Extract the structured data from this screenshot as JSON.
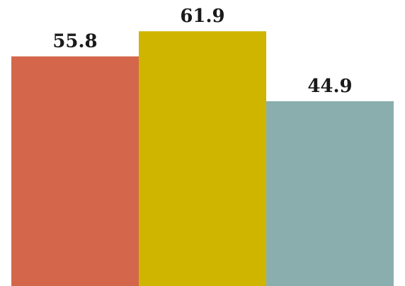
{
  "chart_data": {
    "type": "bar",
    "categories": [
      "",
      "",
      ""
    ],
    "values": [
      55.8,
      61.9,
      44.9
    ],
    "value_labels": [
      "55.8",
      "61.9",
      "44.9"
    ],
    "colors": [
      "#d4674b",
      "#cfb500",
      "#8aaeae"
    ],
    "ylim": [
      0,
      69.5
    ],
    "grid": false,
    "legend": "none",
    "title": "",
    "xlabel": "",
    "ylabel": ""
  }
}
